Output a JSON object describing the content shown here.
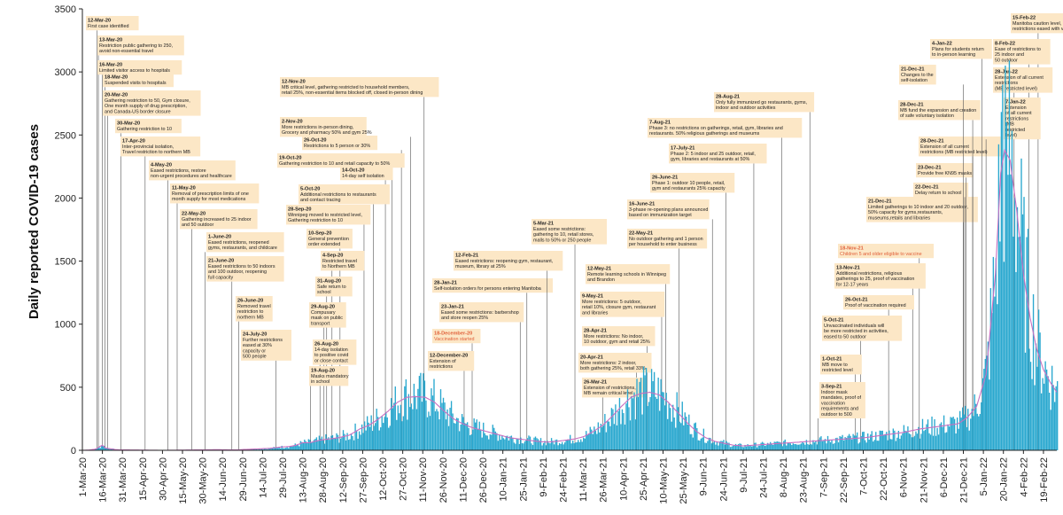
{
  "chart_data": {
    "type": "bar",
    "title": "",
    "xlabel": "",
    "ylabel": "Daily  reported COVID-19 cases",
    "ylim": [
      0,
      3500
    ],
    "yticks": [
      0,
      500,
      1000,
      1500,
      2000,
      2500,
      3000,
      3500
    ],
    "x_start": "1-Mar-20",
    "x_end": "28-Feb-22",
    "grid": false,
    "bar_color": "#2aa8cf",
    "trend_color": "#c96fc0",
    "series": [
      {
        "values_by_period": [
          [
            0,
            0
          ],
          [
            5,
            2
          ],
          [
            7,
            5
          ],
          [
            9,
            8
          ],
          [
            11,
            15
          ],
          [
            13,
            30
          ],
          [
            15,
            40
          ],
          [
            17,
            20
          ],
          [
            19,
            15
          ],
          [
            21,
            12
          ],
          [
            25,
            5
          ],
          [
            30,
            3
          ],
          [
            40,
            2
          ],
          [
            60,
            0
          ],
          [
            80,
            2
          ],
          [
            100,
            5
          ],
          [
            115,
            3
          ],
          [
            125,
            8
          ],
          [
            140,
            15
          ],
          [
            148,
            25
          ],
          [
            155,
            30
          ],
          [
            160,
            40
          ],
          [
            165,
            60
          ],
          [
            170,
            60
          ],
          [
            178,
            80
          ],
          [
            185,
            90
          ],
          [
            192,
            100
          ],
          [
            200,
            120
          ],
          [
            208,
            170
          ],
          [
            215,
            200
          ],
          [
            222,
            250
          ],
          [
            229,
            310
          ],
          [
            236,
            380
          ],
          [
            243,
            420
          ],
          [
            250,
            425
          ],
          [
            257,
            420
          ],
          [
            264,
            380
          ],
          [
            271,
            310
          ],
          [
            278,
            250
          ],
          [
            285,
            210
          ],
          [
            292,
            180
          ],
          [
            299,
            160
          ],
          [
            306,
            140
          ],
          [
            313,
            120
          ],
          [
            320,
            100
          ],
          [
            327,
            90
          ],
          [
            334,
            80
          ],
          [
            341,
            70
          ],
          [
            348,
            65
          ],
          [
            355,
            70
          ],
          [
            362,
            80
          ],
          [
            369,
            90
          ],
          [
            376,
            110
          ],
          [
            383,
            150
          ],
          [
            390,
            200
          ],
          [
            397,
            270
          ],
          [
            404,
            350
          ],
          [
            411,
            420
          ],
          [
            418,
            450
          ],
          [
            425,
            460
          ],
          [
            432,
            440
          ],
          [
            439,
            380
          ],
          [
            446,
            300
          ],
          [
            453,
            220
          ],
          [
            460,
            150
          ],
          [
            467,
            100
          ],
          [
            474,
            70
          ],
          [
            481,
            55
          ],
          [
            488,
            40
          ],
          [
            495,
            35
          ],
          [
            502,
            40
          ],
          [
            509,
            45
          ],
          [
            516,
            50
          ],
          [
            530,
            60
          ],
          [
            544,
            70
          ],
          [
            558,
            80
          ],
          [
            572,
            90
          ],
          [
            586,
            100
          ],
          [
            600,
            120
          ],
          [
            614,
            140
          ],
          [
            628,
            170
          ],
          [
            642,
            190
          ],
          [
            656,
            210
          ],
          [
            663,
            260
          ],
          [
            670,
            350
          ],
          [
            677,
            600
          ],
          [
            684,
            1400
          ],
          [
            688,
            2200
          ],
          [
            691,
            2380
          ],
          [
            695,
            2300
          ],
          [
            700,
            1900
          ],
          [
            705,
            1400
          ],
          [
            710,
            1050
          ],
          [
            715,
            800
          ],
          [
            720,
            640
          ],
          [
            725,
            540
          ],
          [
            730,
            460
          ]
        ],
        "peak_days": [
          {
            "day": 689,
            "value": 2900
          },
          {
            "day": 691,
            "value": 3050
          },
          {
            "day": 692,
            "value": 2600
          }
        ]
      }
    ],
    "x_ticks": [
      "1-Mar-20",
      "16-Mar-20",
      "31-Mar-20",
      "15-Apr-20",
      "30-Apr-20",
      "15-May-20",
      "30-May-20",
      "14-Jun-20",
      "29-Jun-20",
      "14-Jul-20",
      "29-Jul-20",
      "13-Aug-20",
      "28-Aug-20",
      "12-Sep-20",
      "27-Sep-20",
      "12-Oct-20",
      "27-Oct-20",
      "11-Nov-20",
      "26-Nov-20",
      "11-Dec-20",
      "26-Dec-20",
      "10-Jan-21",
      "25-Jan-21",
      "9-Feb-21",
      "24-Feb-21",
      "11-Mar-21",
      "26-Mar-21",
      "10-Apr-21",
      "25-Apr-21",
      "10-May-21",
      "25-May-21",
      "9-Jun-21",
      "24-Jun-21",
      "9-Jul-21",
      "24-Jul-21",
      "8-Aug-21",
      "23-Aug-21",
      "7-Sep-21",
      "22-Sep-21",
      "7-Oct-21",
      "22-Oct-21",
      "6-Nov-21",
      "21-Nov-21",
      "6-Dec-21",
      "21-Dec-21",
      "5-Jan-22",
      "20-Jan-22",
      "4-Feb-22",
      "19-Feb-22"
    ],
    "annotations": [
      {
        "date": "12-Mar-20",
        "lines": [
          "First case identified"
        ]
      },
      {
        "date": "13-Mar-20",
        "lines": [
          "Restriction public gathering to 250,",
          "avoid non-essential travel"
        ]
      },
      {
        "date": "16-Mar-20",
        "lines": [
          "Limited visitor access to hospitals"
        ]
      },
      {
        "date": "18-Mar-20",
        "lines": [
          "Suspended visits to hospitals"
        ]
      },
      {
        "date": "20-Mar-20",
        "lines": [
          "Gathering restriction to 50, Gym closure,",
          "One month supply of drug prescription,",
          "and Canada-US border closure"
        ]
      },
      {
        "date": "30-Mar-20",
        "lines": [
          "Gathering restriction to 10"
        ]
      },
      {
        "date": "17-Apr-20",
        "lines": [
          "Inter-provincial isolation,",
          "Travel restriction to northern MB"
        ]
      },
      {
        "date": "4-May-20",
        "lines": [
          "Eased restrictions, restore",
          "non-urgent procedures and healthcare"
        ]
      },
      {
        "date": "11-May-20",
        "lines": [
          "Removal of prescription limits of one",
          "month supply for most medications"
        ]
      },
      {
        "date": "22-May-20",
        "lines": [
          "Gathering increased to 25 indoor",
          "and 50 outdoor"
        ]
      },
      {
        "date": "1-June-20",
        "lines": [
          "Eased restrictions, reopened",
          "gyms, restaurants, and childcare"
        ]
      },
      {
        "date": "21-June-20",
        "lines": [
          "Eased restrictions to 50 indoors",
          "and 100 outdoor, reopening",
          "full capacity"
        ]
      },
      {
        "date": "26-June-20",
        "lines": [
          "Removed travel",
          "restriction to",
          "northern MB"
        ]
      },
      {
        "date": "24-July-20",
        "lines": [
          "Further restrictions",
          "eased at 30%",
          "capacity or",
          "500 people"
        ]
      },
      {
        "date": "12-Nov-20",
        "lines": [
          "MB critical level, gathering restricted to household members,",
          "retail 25%, non-essential items blocked off, closed in-person dining"
        ]
      },
      {
        "date": "2-Nov-20",
        "lines": [
          "More restrictions in-person dining,",
          "Grocery and pharmacy 50% and gym 25%"
        ]
      },
      {
        "date": "26-Oct-20",
        "lines": [
          "Restrictions to 5 person or 30%"
        ]
      },
      {
        "date": "19-Oct-20",
        "lines": [
          "Gathering restriction to 10 and retail capacity to 50%"
        ]
      },
      {
        "date": "14-Oct-20",
        "lines": [
          "14-day self isolation"
        ]
      },
      {
        "date": "5-Oct-20",
        "lines": [
          "Additional restrictions to restaurants",
          "and contact tracing"
        ]
      },
      {
        "date": "28-Sep-20",
        "lines": [
          "Winnipeg moved to restricted level,",
          "Gathering restriction to 10"
        ]
      },
      {
        "date": "10-Sep-20",
        "lines": [
          "General prevention",
          "order extended"
        ]
      },
      {
        "date": "4-Sep-20",
        "lines": [
          "Restricted travel",
          "to Northern MB"
        ]
      },
      {
        "date": "31-Aug-20",
        "lines": [
          "Safe return to",
          "school"
        ]
      },
      {
        "date": "29-Aug-20",
        "lines": [
          "Compusary",
          "mask on public",
          "transport"
        ]
      },
      {
        "date": "26-Aug-20",
        "lines": [
          "14-day isolation",
          "to positive covid",
          "or close contact"
        ]
      },
      {
        "date": "19-Aug-20",
        "lines": [
          "Masks mandatory",
          "in school"
        ]
      },
      {
        "date": "28-Jan-21",
        "lines": [
          "Self-isolation orders for persons entering Manitoba"
        ]
      },
      {
        "date": "23-Jan-21",
        "lines": [
          "Eased some restrictions: barbershop",
          "and store reopen 25%"
        ]
      },
      {
        "date": "18-December-20",
        "lines": [
          "Vaccination started"
        ],
        "highlight": true
      },
      {
        "date": "12-December-20",
        "lines": [
          "Extension of",
          "restrictions"
        ]
      },
      {
        "date": "12-Feb-21",
        "lines": [
          "Eased restrictions: reopening gym, restaurant,",
          "museum, library at 25%"
        ]
      },
      {
        "date": "5-Mar-21",
        "lines": [
          "Eased some restrictions:",
          "gathering to 10, retail stores,",
          "malls to 50% or 250 people"
        ]
      },
      {
        "date": "12-May-21",
        "lines": [
          "Remote learning schools in Winnipeg",
          "and Brandon"
        ]
      },
      {
        "date": "9-May-21",
        "lines": [
          "More restrictions: 5 outdoor,",
          "retail 10%, closure gym, restaurant",
          "and libraries"
        ]
      },
      {
        "date": "28-Apr-21",
        "lines": [
          "More restrictions: No indoor,",
          "10 outdoor, gym and retail 25%"
        ]
      },
      {
        "date": "20-Apr-21",
        "lines": [
          "More restrictions: 2 indoor,",
          "both gathering 25%, retail 33%"
        ]
      },
      {
        "date": "26-Mar-21",
        "lines": [
          "Extension of restrictions,",
          "MB remain critical level"
        ]
      },
      {
        "date": "22-May-21",
        "lines": [
          "No outdoor gathering and 1 person",
          "per household to enter business"
        ]
      },
      {
        "date": "16-June-21",
        "lines": [
          "3-phase re-opening plans announced",
          "based on immunization target"
        ]
      },
      {
        "date": "26-June-21",
        "lines": [
          "Phase 1: outdoor 10 people, retail,",
          "gym and restaurants 25% capacity"
        ]
      },
      {
        "date": "17-July-21",
        "lines": [
          "Phase 2: 5 indoor and 25 outdoor, retail,",
          "gym, libraries and restaurants at 50%"
        ]
      },
      {
        "date": "7-Aug-21",
        "lines": [
          "Phase 3: no restrictions on gatherings, retail, gym, libraries and",
          "restaurants. 50% religious gatherings and museums"
        ]
      },
      {
        "date": "28-Aug-21",
        "lines": [
          "Only fully immunized go restaurants, gyms,",
          "indoor and outdoor activities"
        ]
      },
      {
        "date": "18-Nov-21",
        "lines": [
          "Children 5 and older eligible to vaccine"
        ],
        "highlight": true
      },
      {
        "date": "13-Nov-21",
        "lines": [
          "Additional restrictions, religious",
          "gatherings to 25, proof of vaccination",
          "for 12-17 years"
        ]
      },
      {
        "date": "26-Oct-21",
        "lines": [
          "Proof of vaccination required"
        ]
      },
      {
        "date": "5-Oct-21",
        "lines": [
          "Unvaccinated individuals will",
          "be more restricted in activities,",
          "eased to 50 outdoor"
        ]
      },
      {
        "date": "1-Oct-21",
        "lines": [
          "MB move to",
          "restricted level"
        ]
      },
      {
        "date": "3-Sep-21",
        "lines": [
          "Indoor mask",
          "mandates, proof of",
          "vaccination",
          "requirements and",
          "outdoor to 500"
        ]
      },
      {
        "date": "21-Dec-21",
        "lines": [
          "Limited gatherings to 10 indoor and 20 outdoor,",
          "50% capacity for gyms,restaurants,",
          "museums,retails and libraries"
        ]
      },
      {
        "date": "22-Dec-21",
        "lines": [
          "Delay return to school"
        ]
      },
      {
        "date": "23-Dec-21",
        "lines": [
          "Provide free KN95 masks"
        ]
      },
      {
        "date": "28-Dec-21",
        "lines": [
          "Extension of all current",
          "restrictions (MB restricted level)"
        ]
      },
      {
        "date": "28-Dec-21",
        "lines": [
          "MB fund the expansion and creation",
          "of safe voluntary isolation"
        ]
      },
      {
        "date": "21-Dec-21",
        "lines": [
          "Changes to the",
          "self-isolation"
        ]
      },
      {
        "date": "4-Jan-22",
        "lines": [
          "Plans for students return",
          "to in-person learning"
        ]
      },
      {
        "date": "15-Feb-22",
        "lines": [
          "Manitoba caution level,",
          "restrictions eased with vaccination proof"
        ]
      },
      {
        "date": "8-Feb-22",
        "lines": [
          "Ease of restrictions to",
          "25 indoor and",
          "50 outdoor"
        ]
      },
      {
        "date": "28-Jan-22",
        "lines": [
          "Extension of all current",
          "restrictions",
          "(MB restricted level)"
        ]
      },
      {
        "date": "7-Jan-22",
        "lines": [
          "Extension",
          "of all current",
          "restrictions",
          "(MB",
          "restricted",
          "level)"
        ]
      }
    ]
  }
}
